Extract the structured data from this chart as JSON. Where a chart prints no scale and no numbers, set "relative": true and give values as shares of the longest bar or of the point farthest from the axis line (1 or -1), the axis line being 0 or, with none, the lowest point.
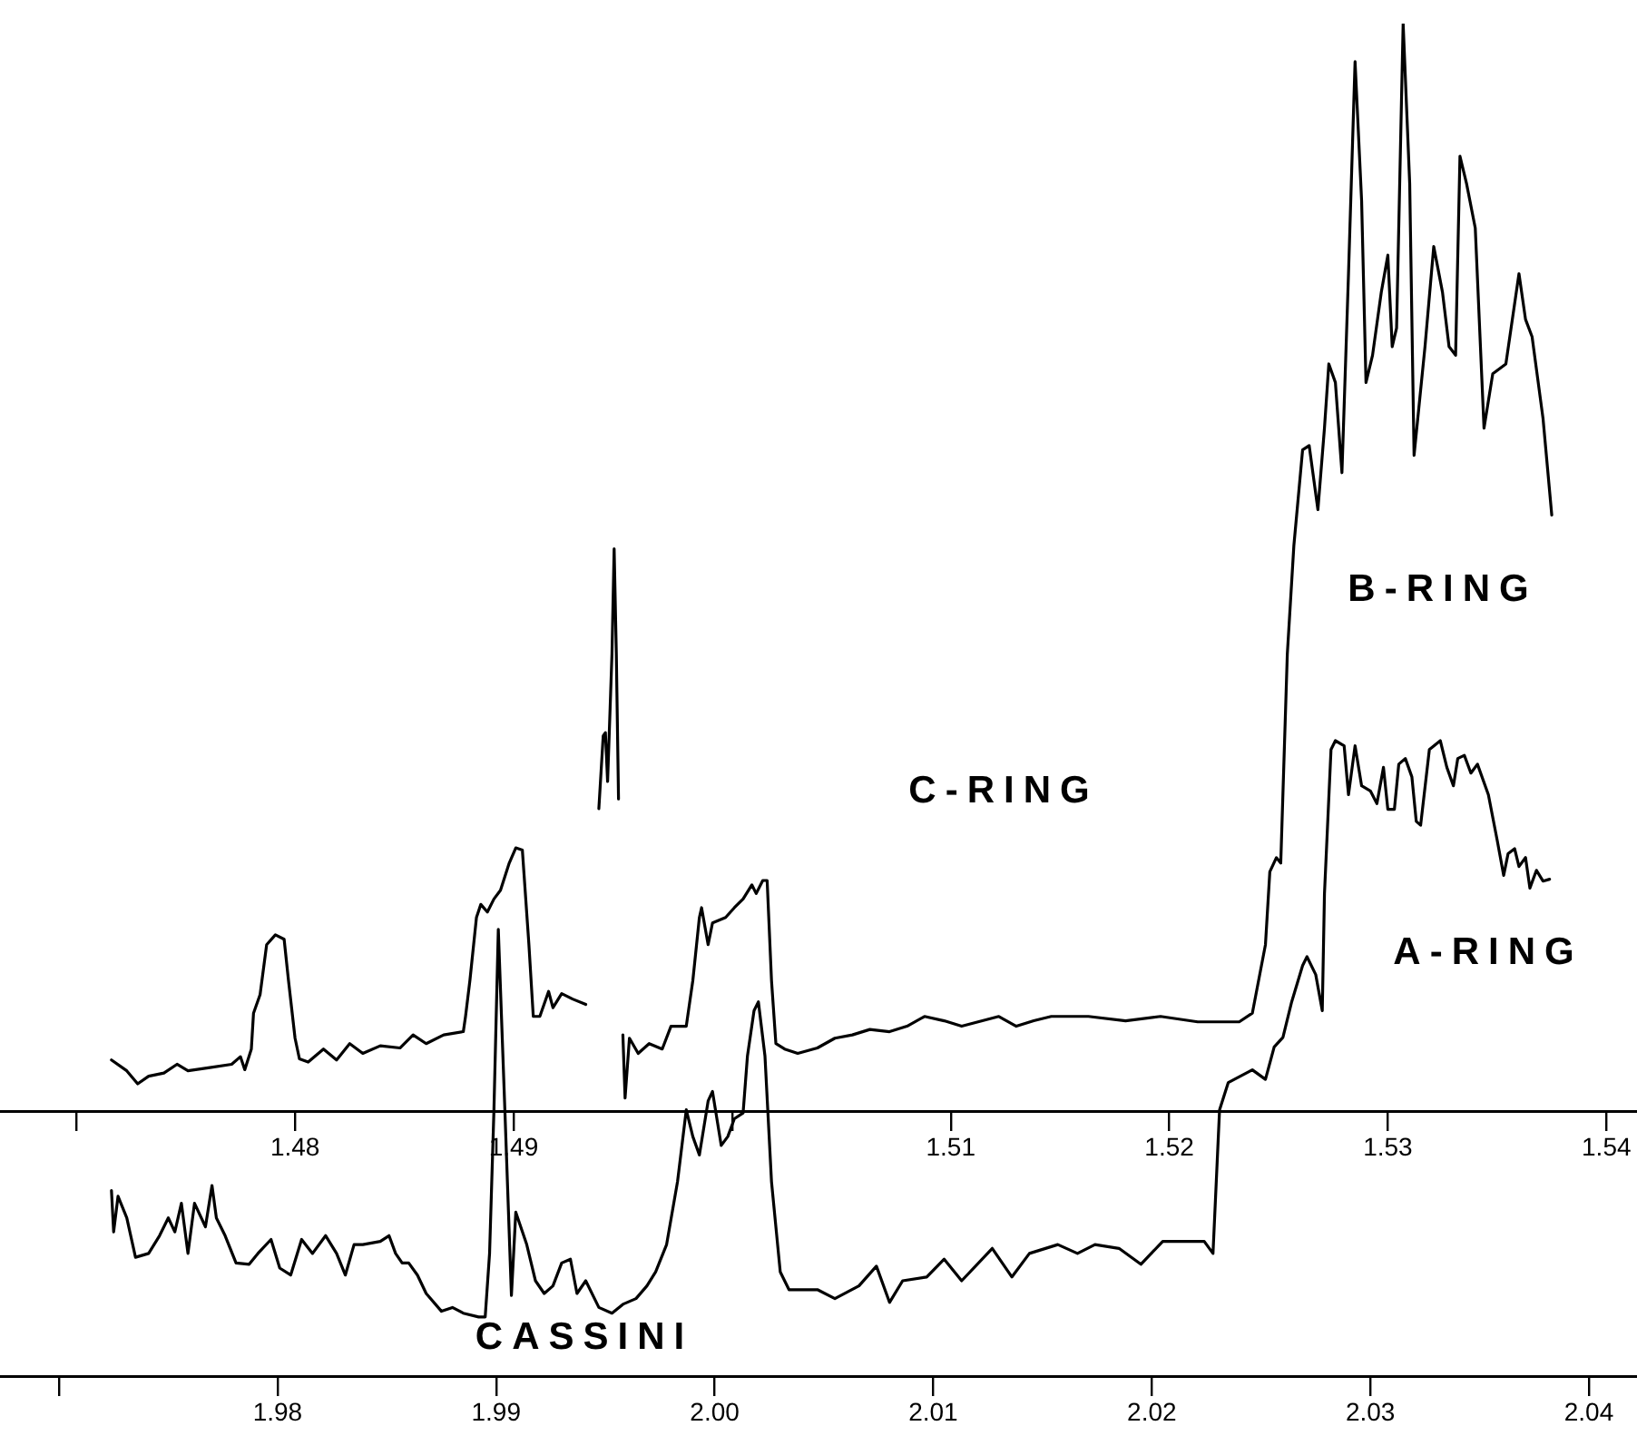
{
  "chart_data": [
    {
      "type": "line",
      "relative": true,
      "marker": "none",
      "line_style": "solid",
      "grid": false,
      "legend": false,
      "tick_labels": "x",
      "xlim": [
        1.4665,
        1.5414
      ],
      "xticks": [
        {
          "value": 1.47,
          "label": null
        },
        1.48,
        1.49,
        {
          "value": 1.5,
          "label": null
        },
        1.51,
        1.52,
        1.53,
        1.54
      ],
      "annotations": [
        "C-RING",
        "B-RING"
      ],
      "series": [
        {
          "color": "#000000",
          "x": [
            1.4716,
            1.4723,
            1.4728,
            1.4733,
            1.474,
            1.4746,
            1.4751,
            1.4761,
            1.4771,
            1.4775,
            1.4777,
            1.478,
            1.4781,
            1.4784,
            1.4787,
            1.4791,
            1.4795,
            1.4797,
            1.48,
            1.4802,
            1.4806,
            1.4813,
            1.4819,
            1.4825,
            1.4831,
            1.4839,
            1.4848,
            1.4854,
            1.486,
            1.4868,
            1.4877,
            1.4878,
            1.488,
            1.4883,
            1.4885,
            1.4888,
            1.4891,
            1.4894,
            1.4898,
            1.4901,
            1.4904,
            1.4907,
            1.4909,
            1.4912,
            1.4916,
            1.4918,
            1.4922,
            1.4927,
            1.4933,
            1.4935,
            1.4939,
            1.4941,
            1.4942,
            1.4943,
            1.4945,
            1.4946,
            1.4947,
            1.4948,
            1.4949,
            1.495,
            1.4951,
            1.4953,
            1.4957,
            1.4962,
            1.4968,
            1.4972,
            1.4979,
            1.4982,
            1.4985,
            1.4986,
            1.4989,
            1.4991,
            1.4997,
            1.5001,
            1.5005,
            1.5009,
            1.5011,
            1.5014,
            1.5016,
            1.5018,
            1.502,
            1.5024,
            1.503,
            1.5039,
            1.5047,
            1.5055,
            1.5063,
            1.5072,
            1.508,
            1.5088,
            1.5097,
            1.5105,
            1.5122,
            1.513,
            1.5138,
            1.5146,
            1.5163,
            1.518,
            1.5196,
            1.5213,
            1.5232,
            1.5238,
            1.5244,
            1.5246,
            1.5249,
            1.5251,
            1.5254,
            1.5257,
            1.5261,
            1.5264,
            1.5268,
            1.5271,
            1.5273,
            1.5276,
            1.5279,
            1.5282,
            1.5285,
            1.5288,
            1.529,
            1.5293,
            1.5297,
            1.53,
            1.5302,
            1.5304,
            1.5307,
            1.531,
            1.5312,
            1.5317,
            1.5321,
            1.5325,
            1.5328,
            1.5331,
            1.5333,
            1.5336,
            1.534,
            1.5344,
            1.5348,
            1.5354,
            1.536,
            1.5363,
            1.5366,
            1.5371,
            1.5375
          ],
          "values": [
            0.047,
            0.037,
            0.025,
            0.032,
            0.035,
            0.043,
            0.037,
            0.04,
            0.043,
            0.05,
            0.038,
            0.057,
            0.09,
            0.107,
            0.153,
            0.162,
            0.158,
            0.12,
            0.067,
            0.048,
            0.045,
            0.057,
            0.047,
            0.062,
            0.053,
            0.06,
            0.058,
            0.07,
            0.062,
            0.07,
            0.073,
            0.087,
            0.12,
            0.178,
            0.19,
            0.183,
            0.195,
            0.203,
            0.228,
            0.242,
            0.24,
            0.153,
            0.087,
            0.087,
            0.11,
            0.095,
            0.108,
            0.103,
            0.098,
            null,
            0.278,
            0.345,
            0.348,
            0.303,
            0.42,
            0.517,
            0.42,
            0.287,
            null,
            0.07,
            0.012,
            0.067,
            0.053,
            0.062,
            0.057,
            0.078,
            0.078,
            0.12,
            0.178,
            0.187,
            0.153,
            0.173,
            0.178,
            0.187,
            0.195,
            0.208,
            0.2,
            0.212,
            0.212,
            0.12,
            0.062,
            0.057,
            0.053,
            0.058,
            0.067,
            0.07,
            0.075,
            0.073,
            0.078,
            0.087,
            0.083,
            0.078,
            0.087,
            0.078,
            0.083,
            0.087,
            0.087,
            0.083,
            0.087,
            0.082,
            0.082,
            0.09,
            0.153,
            0.22,
            0.233,
            0.228,
            0.42,
            0.52,
            0.608,
            0.612,
            0.553,
            0.628,
            0.687,
            0.67,
            0.587,
            0.77,
            0.965,
            0.837,
            0.67,
            0.695,
            0.753,
            0.787,
            0.703,
            0.72,
            1,
            0.853,
            0.603,
            0.703,
            0.795,
            0.753,
            0.703,
            0.695,
            0.878,
            0.853,
            0.812,
            0.628,
            0.678,
            0.687,
            0.77,
            0.728,
            0.712,
            0.637,
            0.548
          ]
        }
      ]
    },
    {
      "type": "line",
      "relative": true,
      "marker": "none",
      "line_style": "solid",
      "grid": false,
      "legend": false,
      "tick_labels": "x",
      "xlim": [
        1.9673,
        2.0422
      ],
      "xticks": [
        {
          "value": 1.97,
          "label": null
        },
        1.98,
        1.99,
        {
          "value": 2,
          "label": "2.00"
        },
        2.01,
        2.02,
        2.03,
        2.04
      ],
      "annotations": [
        "A-RING",
        "CASSINI"
      ],
      "series": [
        {
          "color": "#000000",
          "x": [
            1.9724,
            1.9725,
            1.9727,
            1.9731,
            1.9735,
            1.9741,
            1.9746,
            1.975,
            1.9753,
            1.9756,
            1.9759,
            1.9762,
            1.9767,
            1.977,
            1.9772,
            1.9776,
            1.9781,
            1.9787,
            1.9791,
            1.9797,
            1.9801,
            1.9806,
            1.9811,
            1.9816,
            1.9822,
            1.9827,
            1.9831,
            1.9835,
            1.9839,
            1.9847,
            1.9851,
            1.9854,
            1.9857,
            1.986,
            1.9864,
            1.9868,
            1.9875,
            1.988,
            1.9885,
            1.9892,
            1.9895,
            1.9897,
            1.9899,
            1.9901,
            1.9904,
            1.9907,
            1.9909,
            1.9914,
            1.9918,
            1.9922,
            1.9926,
            1.993,
            1.9934,
            1.9937,
            1.9941,
            1.9947,
            1.9953,
            1.9958,
            1.9964,
            1.9969,
            1.9973,
            1.9978,
            1.9983,
            1.9987,
            1.999,
            1.9993,
            1.9997,
            1.9999,
            2.0003,
            2.0006,
            2.0009,
            2.0013,
            2.0015,
            2.0018,
            2.002,
            2.0023,
            2.0026,
            2.003,
            2.0034,
            2.0047,
            2.0055,
            2.0066,
            2.0074,
            2.008,
            2.0086,
            2.0097,
            2.0105,
            2.0113,
            2.0127,
            2.0136,
            2.0144,
            2.0157,
            2.0166,
            2.0174,
            2.0185,
            2.0195,
            2.0205,
            2.0213,
            2.0224,
            2.0228,
            2.0231,
            2.0235,
            2.0246,
            2.0252,
            2.0256,
            2.026,
            2.0264,
            2.0269,
            2.0271,
            2.0275,
            2.0278,
            2.0279,
            2.0282,
            2.0284,
            2.0288,
            2.029,
            2.0293,
            2.0296,
            2.03,
            2.0303,
            2.0306,
            2.0308,
            2.0311,
            2.0313,
            2.0316,
            2.0319,
            2.0321,
            2.0323,
            2.0327,
            2.0332,
            2.0335,
            2.0338,
            2.034,
            2.0343,
            2.0346,
            2.0349,
            2.0354,
            2.0358,
            2.0361,
            2.0363,
            2.0366,
            2.0368,
            2.0371,
            2.0373,
            2.0376,
            2.0379,
            2.0382
          ],
          "values": [
            0.292,
            0.227,
            0.283,
            0.249,
            0.187,
            0.193,
            0.221,
            0.249,
            0.227,
            0.272,
            0.193,
            0.272,
            0.235,
            0.3,
            0.249,
            0.221,
            0.178,
            0.176,
            0.193,
            0.215,
            0.17,
            0.159,
            0.215,
            0.193,
            0.221,
            0.193,
            0.159,
            0.207,
            0.207,
            0.212,
            0.221,
            0.193,
            0.178,
            0.178,
            0.159,
            0.13,
            0.102,
            0.108,
            0.099,
            0.093,
            0.093,
            0.193,
            0.419,
            0.703,
            0.419,
            0.127,
            0.258,
            0.207,
            0.15,
            0.13,
            0.142,
            0.178,
            0.184,
            0.13,
            0.15,
            0.108,
            0.099,
            0.113,
            0.122,
            0.142,
            0.164,
            0.207,
            0.306,
            0.419,
            0.377,
            0.348,
            0.433,
            0.448,
            0.363,
            0.377,
            0.405,
            0.414,
            0.504,
            0.575,
            0.589,
            0.504,
            0.306,
            0.164,
            0.136,
            0.136,
            0.122,
            0.142,
            0.173,
            0.116,
            0.15,
            0.156,
            0.184,
            0.15,
            0.201,
            0.156,
            0.193,
            0.207,
            0.193,
            0.207,
            0.201,
            0.176,
            0.212,
            0.212,
            0.212,
            0.193,
            0.419,
            0.462,
            0.482,
            0.467,
            0.518,
            0.533,
            0.589,
            0.646,
            0.66,
            0.632,
            0.575,
            0.759,
            0.986,
            1,
            0.992,
            0.915,
            0.992,
            0.929,
            0.921,
            0.901,
            0.958,
            0.892,
            0.892,
            0.963,
            0.972,
            0.943,
            0.873,
            0.867,
            0.986,
            1,
            0.958,
            0.929,
            0.972,
            0.977,
            0.949,
            0.963,
            0.915,
            0.844,
            0.788,
            0.822,
            0.83,
            0.802,
            0.816,
            0.768,
            0.796,
            0.779,
            0.782
          ]
        }
      ]
    }
  ]
}
